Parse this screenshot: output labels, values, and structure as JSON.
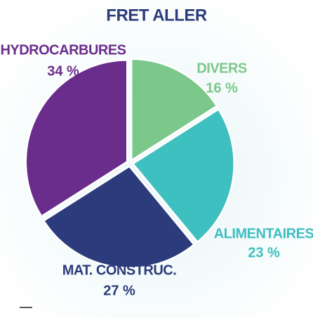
{
  "chart_data": {
    "type": "pie",
    "title": "FRET ALLER",
    "categories": [
      "DIVERS",
      "ALIMENTAIRES",
      "MAT. CONSTRUC.",
      "HYDROCARBURES"
    ],
    "values": [
      16,
      23,
      27,
      34
    ],
    "value_labels": [
      "16 %",
      "23 %",
      "27 %",
      "34 %"
    ],
    "colors": [
      "#7cc88a",
      "#3ebfc0",
      "#2c3b7b",
      "#6b2d8c"
    ]
  }
}
